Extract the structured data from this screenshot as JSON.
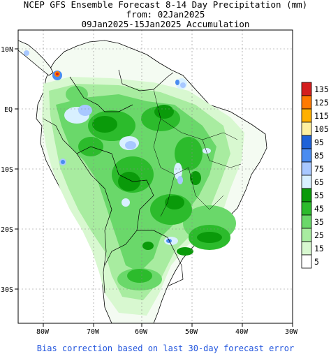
{
  "title": {
    "line1": "NCEP GFS Ensemble Forecast 8-14 Day Precipitation (mm)",
    "line2": "from: 02Jan2025",
    "line3": "09Jan2025-15Jan2025 Accumulation"
  },
  "axes": {
    "lat_labels": [
      "10N",
      "EQ",
      "10S",
      "20S",
      "30S"
    ],
    "lon_labels": [
      "80W",
      "70W",
      "60W",
      "50W",
      "40W",
      "30W"
    ]
  },
  "legend": {
    "labels": [
      "135",
      "125",
      "115",
      "105",
      "95",
      "85",
      "75",
      "65",
      "55",
      "45",
      "35",
      "25",
      "15",
      "5"
    ],
    "colors": [
      "#d41e1e",
      "#ff7a00",
      "#ffb000",
      "#fff0a0",
      "#1e62d8",
      "#4a8cf0",
      "#a8c8ff",
      "#d8f0ff",
      "#0a9a0a",
      "#2cbb2c",
      "#6ad86a",
      "#a8eca0",
      "#d8f8d0",
      "#ffffff"
    ]
  },
  "footer": "Bias correction based on last 30-day forecast error"
}
